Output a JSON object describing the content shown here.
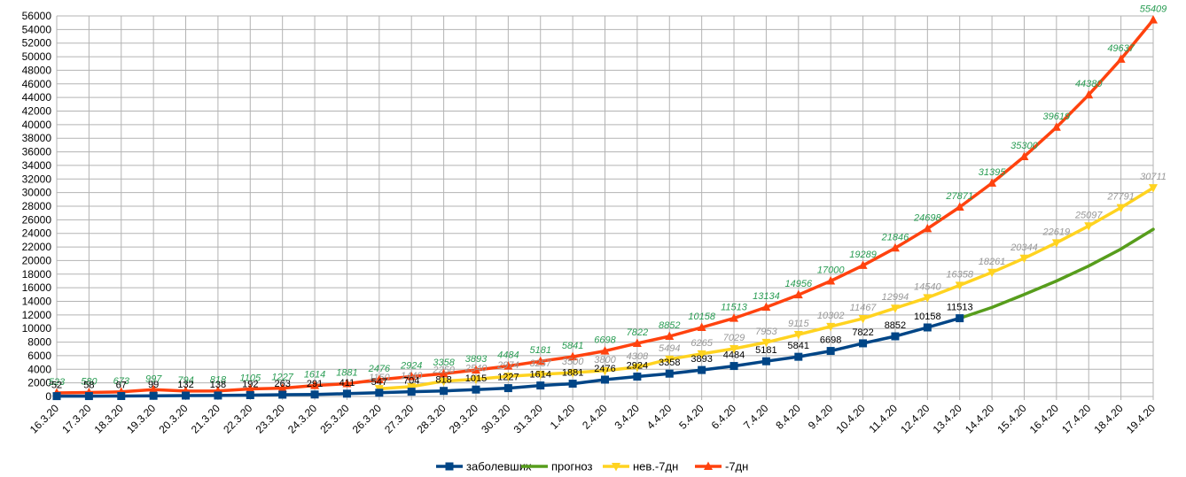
{
  "chart_data": {
    "type": "line",
    "categories": [
      "16.3.20",
      "17.3.20",
      "18.3.20",
      "19.3.20",
      "20.3.20",
      "21.3.20",
      "22.3.20",
      "23.3.20",
      "24.3.20",
      "25.3.20",
      "26.3.20",
      "27.3.20",
      "28.3.20",
      "29.3.20",
      "30.3.20",
      "31.3.20",
      "1.4.20",
      "2.4.20",
      "3.4.20",
      "4.4.20",
      "5.4.20",
      "6.4.20",
      "7.4.20",
      "8.4.20",
      "9.4.20",
      "10.4.20",
      "11.4.20",
      "12.4.20",
      "13.4.20",
      "14.4.20",
      "15.4.20",
      "16.4.20",
      "17.4.20",
      "18.4.20",
      "19.4.20"
    ],
    "ylim": [
      0,
      56000
    ],
    "ytick_step": 2000,
    "grid": true,
    "legend_position": "bottom",
    "series": [
      {
        "name": "заболевших",
        "color": "#004586",
        "marker": "square",
        "label_color": "#000000",
        "label_style": "normal",
        "values": [
          52,
          58,
          67,
          99,
          132,
          138,
          192,
          263,
          291,
          411,
          547,
          704,
          818,
          1015,
          1227,
          1614,
          1881,
          2476,
          2924,
          3358,
          3893,
          4484,
          5181,
          5841,
          6698,
          7822,
          8852,
          10158,
          11513,
          null,
          null,
          null,
          null,
          null,
          null
        ]
      },
      {
        "name": "прогноз",
        "color": "#579d1c",
        "marker": "none",
        "label_color": null,
        "label_style": "none",
        "values": [
          null,
          null,
          null,
          null,
          null,
          null,
          null,
          null,
          null,
          null,
          null,
          null,
          null,
          null,
          null,
          null,
          null,
          null,
          null,
          null,
          null,
          null,
          null,
          null,
          null,
          null,
          null,
          null,
          11513,
          13100,
          15000,
          17000,
          19200,
          21700,
          24600
        ]
      },
      {
        "name": "нев.-7дн",
        "color": "#ffd320",
        "marker": "triangle-down",
        "label_color": "#999999",
        "label_style": "italic",
        "values": [
          null,
          null,
          null,
          null,
          null,
          null,
          null,
          null,
          null,
          null,
          1150,
          1440,
          2250,
          2540,
          2974,
          3257,
          3500,
          3800,
          4308,
          5494,
          6265,
          7029,
          7953,
          9115,
          10302,
          11467,
          12994,
          14540,
          16358,
          18261,
          20344,
          22619,
          25097,
          27791,
          30711
        ]
      },
      {
        "name": "-7дн",
        "color": "#ff420e",
        "marker": "triangle-up",
        "label_color": "#2a9d54",
        "label_style": "italic",
        "values": [
          523,
          580,
          673,
          997,
          794,
          818,
          1105,
          1227,
          1614,
          1881,
          2476,
          2924,
          3358,
          3893,
          4484,
          5181,
          5841,
          6698,
          7822,
          8852,
          10158,
          11513,
          13134,
          14956,
          17000,
          19289,
          21846,
          24698,
          27871,
          31395,
          35300,
          39619,
          44380,
          49637,
          55409
        ]
      }
    ]
  }
}
